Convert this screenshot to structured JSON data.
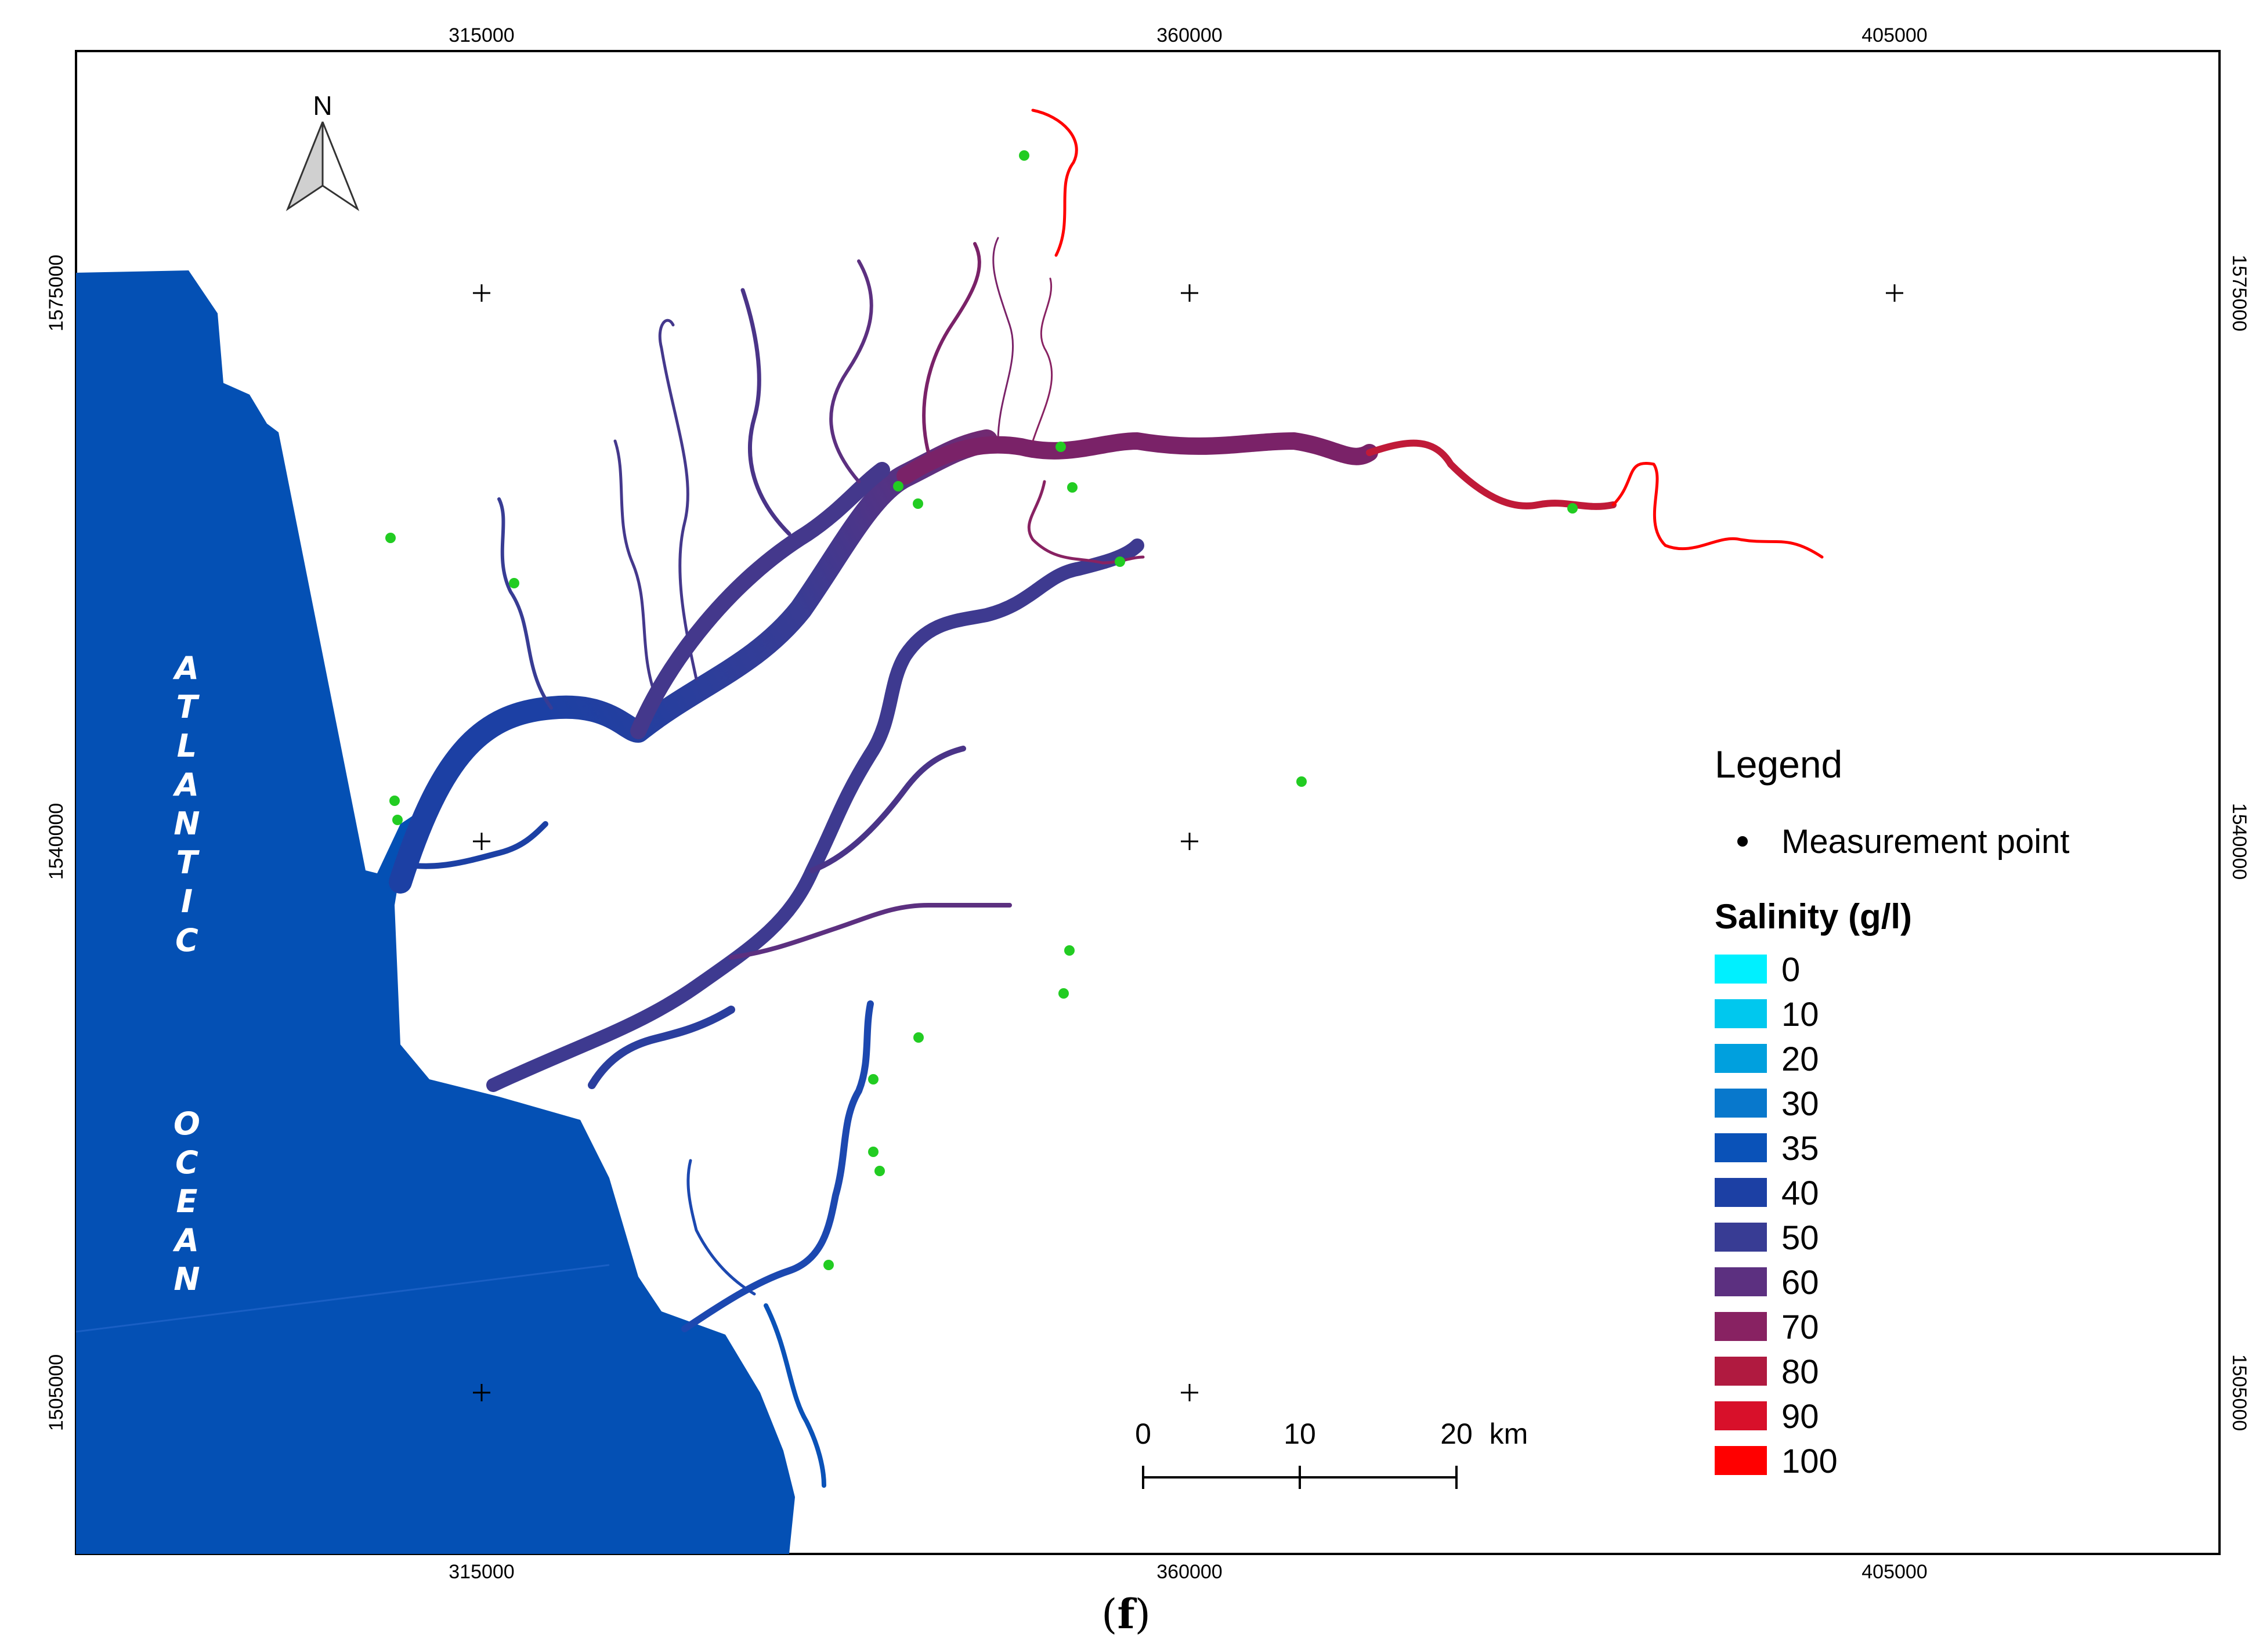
{
  "map": {
    "ocean_label_top": [
      "A",
      "T",
      "L",
      "A",
      "N",
      "T",
      "I",
      "C"
    ],
    "ocean_label_bottom": [
      "O",
      "C",
      "E",
      "A",
      "N"
    ],
    "north_label": "N",
    "x_ticks": [
      "315000",
      "360000",
      "405000"
    ],
    "y_ticks": [
      "1575000",
      "1540000",
      "1505000"
    ],
    "colors": {
      "ocean": "#0450b4",
      "frame": "#000000",
      "measurement_point": "#22cc22"
    }
  },
  "legend": {
    "title": "Legend",
    "measurement_label": "Measurement point",
    "salinity_title": "Salinity (g/l)",
    "classes": [
      {
        "label": "0",
        "color": "#00f0ff"
      },
      {
        "label": "10",
        "color": "#00c8ee"
      },
      {
        "label": "20",
        "color": "#00a0de"
      },
      {
        "label": "30",
        "color": "#0878cc"
      },
      {
        "label": "35",
        "color": "#0a52b8"
      },
      {
        "label": "40",
        "color": "#1c40a4"
      },
      {
        "label": "50",
        "color": "#383c94"
      },
      {
        "label": "60",
        "color": "#5c3080"
      },
      {
        "label": "70",
        "color": "#882262"
      },
      {
        "label": "80",
        "color": "#b01a40"
      },
      {
        "label": "90",
        "color": "#d8102a"
      },
      {
        "label": "100",
        "color": "#ff0000"
      }
    ]
  },
  "scale_bar": {
    "labels": [
      "0",
      "10",
      "20"
    ],
    "unit": "km"
  },
  "figure_label": "f"
}
